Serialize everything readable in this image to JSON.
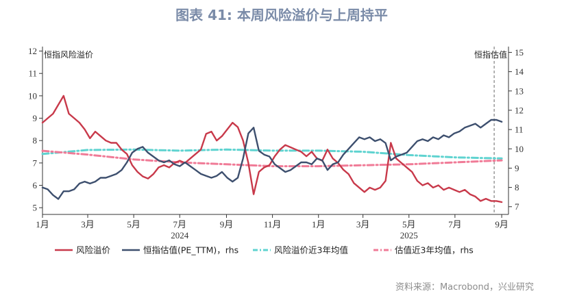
{
  "title": "图表 41: 本周风险溢价与上周持平",
  "source": "资料来源：Macrobond，兴业研究",
  "axes": {
    "left_label": "恒指风险溢价",
    "right_label": "恒指估值"
  },
  "colors": {
    "risk_premium": "#c8394a",
    "valuation": "#3d4f6e",
    "risk_premium_avg": "#5fd3d0",
    "valuation_avg": "#f07b97",
    "axis": "#333333",
    "marker_line": "#666666"
  },
  "chart_data": {
    "type": "line",
    "x_range": [
      "2024-01-01",
      "2025-09-10"
    ],
    "x_ticks": [
      {
        "label": "1月",
        "date": "2024-01-01"
      },
      {
        "label": "3月",
        "date": "2024-03-01"
      },
      {
        "label": "5月",
        "date": "2024-05-01"
      },
      {
        "label": "7月",
        "date": "2024-07-01"
      },
      {
        "label": "9月",
        "date": "2024-09-01"
      },
      {
        "label": "11月",
        "date": "2024-11-01"
      },
      {
        "label": "1月",
        "date": "2025-01-01"
      },
      {
        "label": "3月",
        "date": "2025-03-01"
      },
      {
        "label": "5月",
        "date": "2025-05-01"
      },
      {
        "label": "7月",
        "date": "2025-07-01"
      },
      {
        "label": "9月",
        "date": "2025-09-01"
      }
    ],
    "year_labels": [
      {
        "label": "2024",
        "date": "2024-07-01"
      },
      {
        "label": "2025",
        "date": "2025-05-01"
      }
    ],
    "marker_date": "2025-08-22",
    "ylim_left": [
      4.7,
      12.2
    ],
    "ylim_right": [
      6.6,
      15.3
    ],
    "yticks_left": [
      5,
      6,
      7,
      8,
      9,
      10,
      11,
      12
    ],
    "yticks_right": [
      7,
      8,
      9,
      10,
      11,
      12,
      13,
      14,
      15
    ],
    "legend": [
      {
        "name": "风险溢价",
        "axis": "left",
        "style": "solid",
        "color_key": "risk_premium"
      },
      {
        "name": "恒指估值(PE_TTM)，rhs",
        "axis": "right",
        "style": "solid",
        "color_key": "valuation"
      },
      {
        "name": "风险溢价近3年均值",
        "axis": "left",
        "style": "dashdot",
        "color_key": "risk_premium_avg"
      },
      {
        "name": "估值近3年均值，rhs",
        "axis": "right",
        "style": "dashdot",
        "color_key": "valuation_avg"
      }
    ],
    "series": [
      {
        "name": "风险溢价",
        "axis": "left",
        "points": [
          [
            "2024-01-01",
            8.8
          ],
          [
            "2024-01-08",
            9.0
          ],
          [
            "2024-01-15",
            9.2
          ],
          [
            "2024-01-22",
            9.6
          ],
          [
            "2024-01-29",
            10.0
          ],
          [
            "2024-02-05",
            9.2
          ],
          [
            "2024-02-12",
            9.0
          ],
          [
            "2024-02-19",
            8.8
          ],
          [
            "2024-02-26",
            8.5
          ],
          [
            "2024-03-04",
            8.1
          ],
          [
            "2024-03-11",
            8.4
          ],
          [
            "2024-03-18",
            8.2
          ],
          [
            "2024-03-25",
            8.0
          ],
          [
            "2024-04-01",
            7.9
          ],
          [
            "2024-04-08",
            7.9
          ],
          [
            "2024-04-15",
            7.6
          ],
          [
            "2024-04-22",
            7.4
          ],
          [
            "2024-04-29",
            6.9
          ],
          [
            "2024-05-06",
            6.6
          ],
          [
            "2024-05-13",
            6.4
          ],
          [
            "2024-05-20",
            6.3
          ],
          [
            "2024-05-27",
            6.5
          ],
          [
            "2024-06-03",
            6.8
          ],
          [
            "2024-06-10",
            6.9
          ],
          [
            "2024-06-17",
            6.8
          ],
          [
            "2024-06-24",
            7.0
          ],
          [
            "2024-07-01",
            7.1
          ],
          [
            "2024-07-08",
            7.0
          ],
          [
            "2024-07-15",
            7.2
          ],
          [
            "2024-07-22",
            7.4
          ],
          [
            "2024-07-29",
            7.6
          ],
          [
            "2024-08-05",
            8.3
          ],
          [
            "2024-08-12",
            8.4
          ],
          [
            "2024-08-19",
            8.0
          ],
          [
            "2024-08-26",
            8.2
          ],
          [
            "2024-09-02",
            8.5
          ],
          [
            "2024-09-09",
            8.8
          ],
          [
            "2024-09-16",
            8.6
          ],
          [
            "2024-09-23",
            8.0
          ],
          [
            "2024-09-30",
            7.0
          ],
          [
            "2024-10-07",
            5.6
          ],
          [
            "2024-10-14",
            6.6
          ],
          [
            "2024-10-21",
            6.8
          ],
          [
            "2024-10-28",
            6.9
          ],
          [
            "2024-11-04",
            7.3
          ],
          [
            "2024-11-11",
            7.6
          ],
          [
            "2024-11-18",
            7.8
          ],
          [
            "2024-11-25",
            7.7
          ],
          [
            "2024-12-02",
            7.6
          ],
          [
            "2024-12-09",
            7.5
          ],
          [
            "2024-12-16",
            7.3
          ],
          [
            "2024-12-23",
            7.5
          ],
          [
            "2024-12-30",
            7.2
          ],
          [
            "2025-01-06",
            7.1
          ],
          [
            "2025-01-13",
            7.6
          ],
          [
            "2025-01-20",
            7.2
          ],
          [
            "2025-01-27",
            7.0
          ],
          [
            "2025-02-03",
            6.7
          ],
          [
            "2025-02-10",
            6.5
          ],
          [
            "2025-02-17",
            6.1
          ],
          [
            "2025-02-24",
            5.9
          ],
          [
            "2025-03-03",
            5.7
          ],
          [
            "2025-03-10",
            5.9
          ],
          [
            "2025-03-17",
            5.8
          ],
          [
            "2025-03-24",
            5.9
          ],
          [
            "2025-03-31",
            6.2
          ],
          [
            "2025-04-07",
            7.9
          ],
          [
            "2025-04-14",
            7.2
          ],
          [
            "2025-04-21",
            7.0
          ],
          [
            "2025-04-28",
            6.8
          ],
          [
            "2025-05-05",
            6.6
          ],
          [
            "2025-05-12",
            6.2
          ],
          [
            "2025-05-19",
            6.0
          ],
          [
            "2025-05-26",
            6.1
          ],
          [
            "2025-06-02",
            5.9
          ],
          [
            "2025-06-09",
            6.0
          ],
          [
            "2025-06-16",
            5.8
          ],
          [
            "2025-06-23",
            5.9
          ],
          [
            "2025-06-30",
            5.8
          ],
          [
            "2025-07-07",
            5.7
          ],
          [
            "2025-07-14",
            5.8
          ],
          [
            "2025-07-21",
            5.6
          ],
          [
            "2025-07-28",
            5.5
          ],
          [
            "2025-08-04",
            5.3
          ],
          [
            "2025-08-11",
            5.4
          ],
          [
            "2025-08-18",
            5.3
          ],
          [
            "2025-08-25",
            5.3
          ],
          [
            "2025-09-01",
            5.25
          ]
        ]
      },
      {
        "name": "恒指估值(PE_TTM)，rhs",
        "axis": "right",
        "points": [
          [
            "2024-01-01",
            8.0
          ],
          [
            "2024-01-08",
            7.9
          ],
          [
            "2024-01-15",
            7.6
          ],
          [
            "2024-01-22",
            7.4
          ],
          [
            "2024-01-29",
            7.8
          ],
          [
            "2024-02-05",
            7.8
          ],
          [
            "2024-02-12",
            7.9
          ],
          [
            "2024-02-19",
            8.2
          ],
          [
            "2024-02-26",
            8.3
          ],
          [
            "2024-03-04",
            8.2
          ],
          [
            "2024-03-11",
            8.3
          ],
          [
            "2024-03-18",
            8.5
          ],
          [
            "2024-03-25",
            8.5
          ],
          [
            "2024-04-01",
            8.6
          ],
          [
            "2024-04-08",
            8.7
          ],
          [
            "2024-04-15",
            8.9
          ],
          [
            "2024-04-22",
            9.3
          ],
          [
            "2024-04-29",
            9.8
          ],
          [
            "2024-05-06",
            10.0
          ],
          [
            "2024-05-13",
            10.1
          ],
          [
            "2024-05-20",
            9.8
          ],
          [
            "2024-05-27",
            9.6
          ],
          [
            "2024-06-03",
            9.4
          ],
          [
            "2024-06-10",
            9.3
          ],
          [
            "2024-06-17",
            9.4
          ],
          [
            "2024-06-24",
            9.2
          ],
          [
            "2024-07-01",
            9.1
          ],
          [
            "2024-07-08",
            9.3
          ],
          [
            "2024-07-15",
            9.1
          ],
          [
            "2024-07-22",
            8.9
          ],
          [
            "2024-07-29",
            8.7
          ],
          [
            "2024-08-05",
            8.6
          ],
          [
            "2024-08-12",
            8.5
          ],
          [
            "2024-08-19",
            8.6
          ],
          [
            "2024-08-26",
            8.8
          ],
          [
            "2024-09-02",
            8.5
          ],
          [
            "2024-09-09",
            8.3
          ],
          [
            "2024-09-16",
            8.5
          ],
          [
            "2024-09-23",
            9.5
          ],
          [
            "2024-09-30",
            10.8
          ],
          [
            "2024-10-07",
            11.1
          ],
          [
            "2024-10-14",
            9.9
          ],
          [
            "2024-10-21",
            9.7
          ],
          [
            "2024-10-28",
            9.6
          ],
          [
            "2024-11-04",
            9.2
          ],
          [
            "2024-11-11",
            9.0
          ],
          [
            "2024-11-18",
            8.8
          ],
          [
            "2024-11-25",
            8.9
          ],
          [
            "2024-12-02",
            9.1
          ],
          [
            "2024-12-09",
            9.3
          ],
          [
            "2024-12-16",
            9.3
          ],
          [
            "2024-12-23",
            9.2
          ],
          [
            "2024-12-30",
            9.5
          ],
          [
            "2025-01-06",
            9.4
          ],
          [
            "2025-01-13",
            8.9
          ],
          [
            "2025-01-20",
            9.2
          ],
          [
            "2025-01-27",
            9.3
          ],
          [
            "2025-02-03",
            9.7
          ],
          [
            "2025-02-10",
            10.0
          ],
          [
            "2025-02-17",
            10.3
          ],
          [
            "2025-02-24",
            10.6
          ],
          [
            "2025-03-03",
            10.5
          ],
          [
            "2025-03-10",
            10.6
          ],
          [
            "2025-03-17",
            10.4
          ],
          [
            "2025-03-24",
            10.5
          ],
          [
            "2025-03-31",
            10.3
          ],
          [
            "2025-04-07",
            9.4
          ],
          [
            "2025-04-14",
            9.6
          ],
          [
            "2025-04-21",
            9.7
          ],
          [
            "2025-04-28",
            9.8
          ],
          [
            "2025-05-05",
            10.1
          ],
          [
            "2025-05-12",
            10.4
          ],
          [
            "2025-05-19",
            10.5
          ],
          [
            "2025-05-26",
            10.4
          ],
          [
            "2025-06-02",
            10.6
          ],
          [
            "2025-06-09",
            10.5
          ],
          [
            "2025-06-16",
            10.7
          ],
          [
            "2025-06-23",
            10.6
          ],
          [
            "2025-06-30",
            10.8
          ],
          [
            "2025-07-07",
            10.9
          ],
          [
            "2025-07-14",
            11.1
          ],
          [
            "2025-07-21",
            11.2
          ],
          [
            "2025-07-28",
            11.3
          ],
          [
            "2025-08-04",
            11.1
          ],
          [
            "2025-08-11",
            11.3
          ],
          [
            "2025-08-18",
            11.5
          ],
          [
            "2025-08-25",
            11.5
          ],
          [
            "2025-09-01",
            11.4
          ]
        ]
      },
      {
        "name": "风险溢价近3年均值",
        "axis": "left",
        "points": [
          [
            "2024-01-01",
            7.4
          ],
          [
            "2024-03-01",
            7.58
          ],
          [
            "2024-05-01",
            7.6
          ],
          [
            "2024-07-01",
            7.55
          ],
          [
            "2024-09-01",
            7.6
          ],
          [
            "2024-11-01",
            7.55
          ],
          [
            "2025-01-01",
            7.55
          ],
          [
            "2025-03-01",
            7.5
          ],
          [
            "2025-05-01",
            7.35
          ],
          [
            "2025-07-01",
            7.25
          ],
          [
            "2025-09-01",
            7.2
          ]
        ]
      },
      {
        "name": "估值近3年均值，rhs",
        "axis": "right",
        "points": [
          [
            "2024-01-01",
            9.9
          ],
          [
            "2024-03-01",
            9.7
          ],
          [
            "2024-05-01",
            9.45
          ],
          [
            "2024-07-01",
            9.3
          ],
          [
            "2024-09-01",
            9.2
          ],
          [
            "2024-11-01",
            9.1
          ],
          [
            "2025-01-01",
            9.1
          ],
          [
            "2025-03-01",
            9.15
          ],
          [
            "2025-05-01",
            9.2
          ],
          [
            "2025-07-01",
            9.3
          ],
          [
            "2025-09-01",
            9.4
          ]
        ]
      }
    ]
  }
}
